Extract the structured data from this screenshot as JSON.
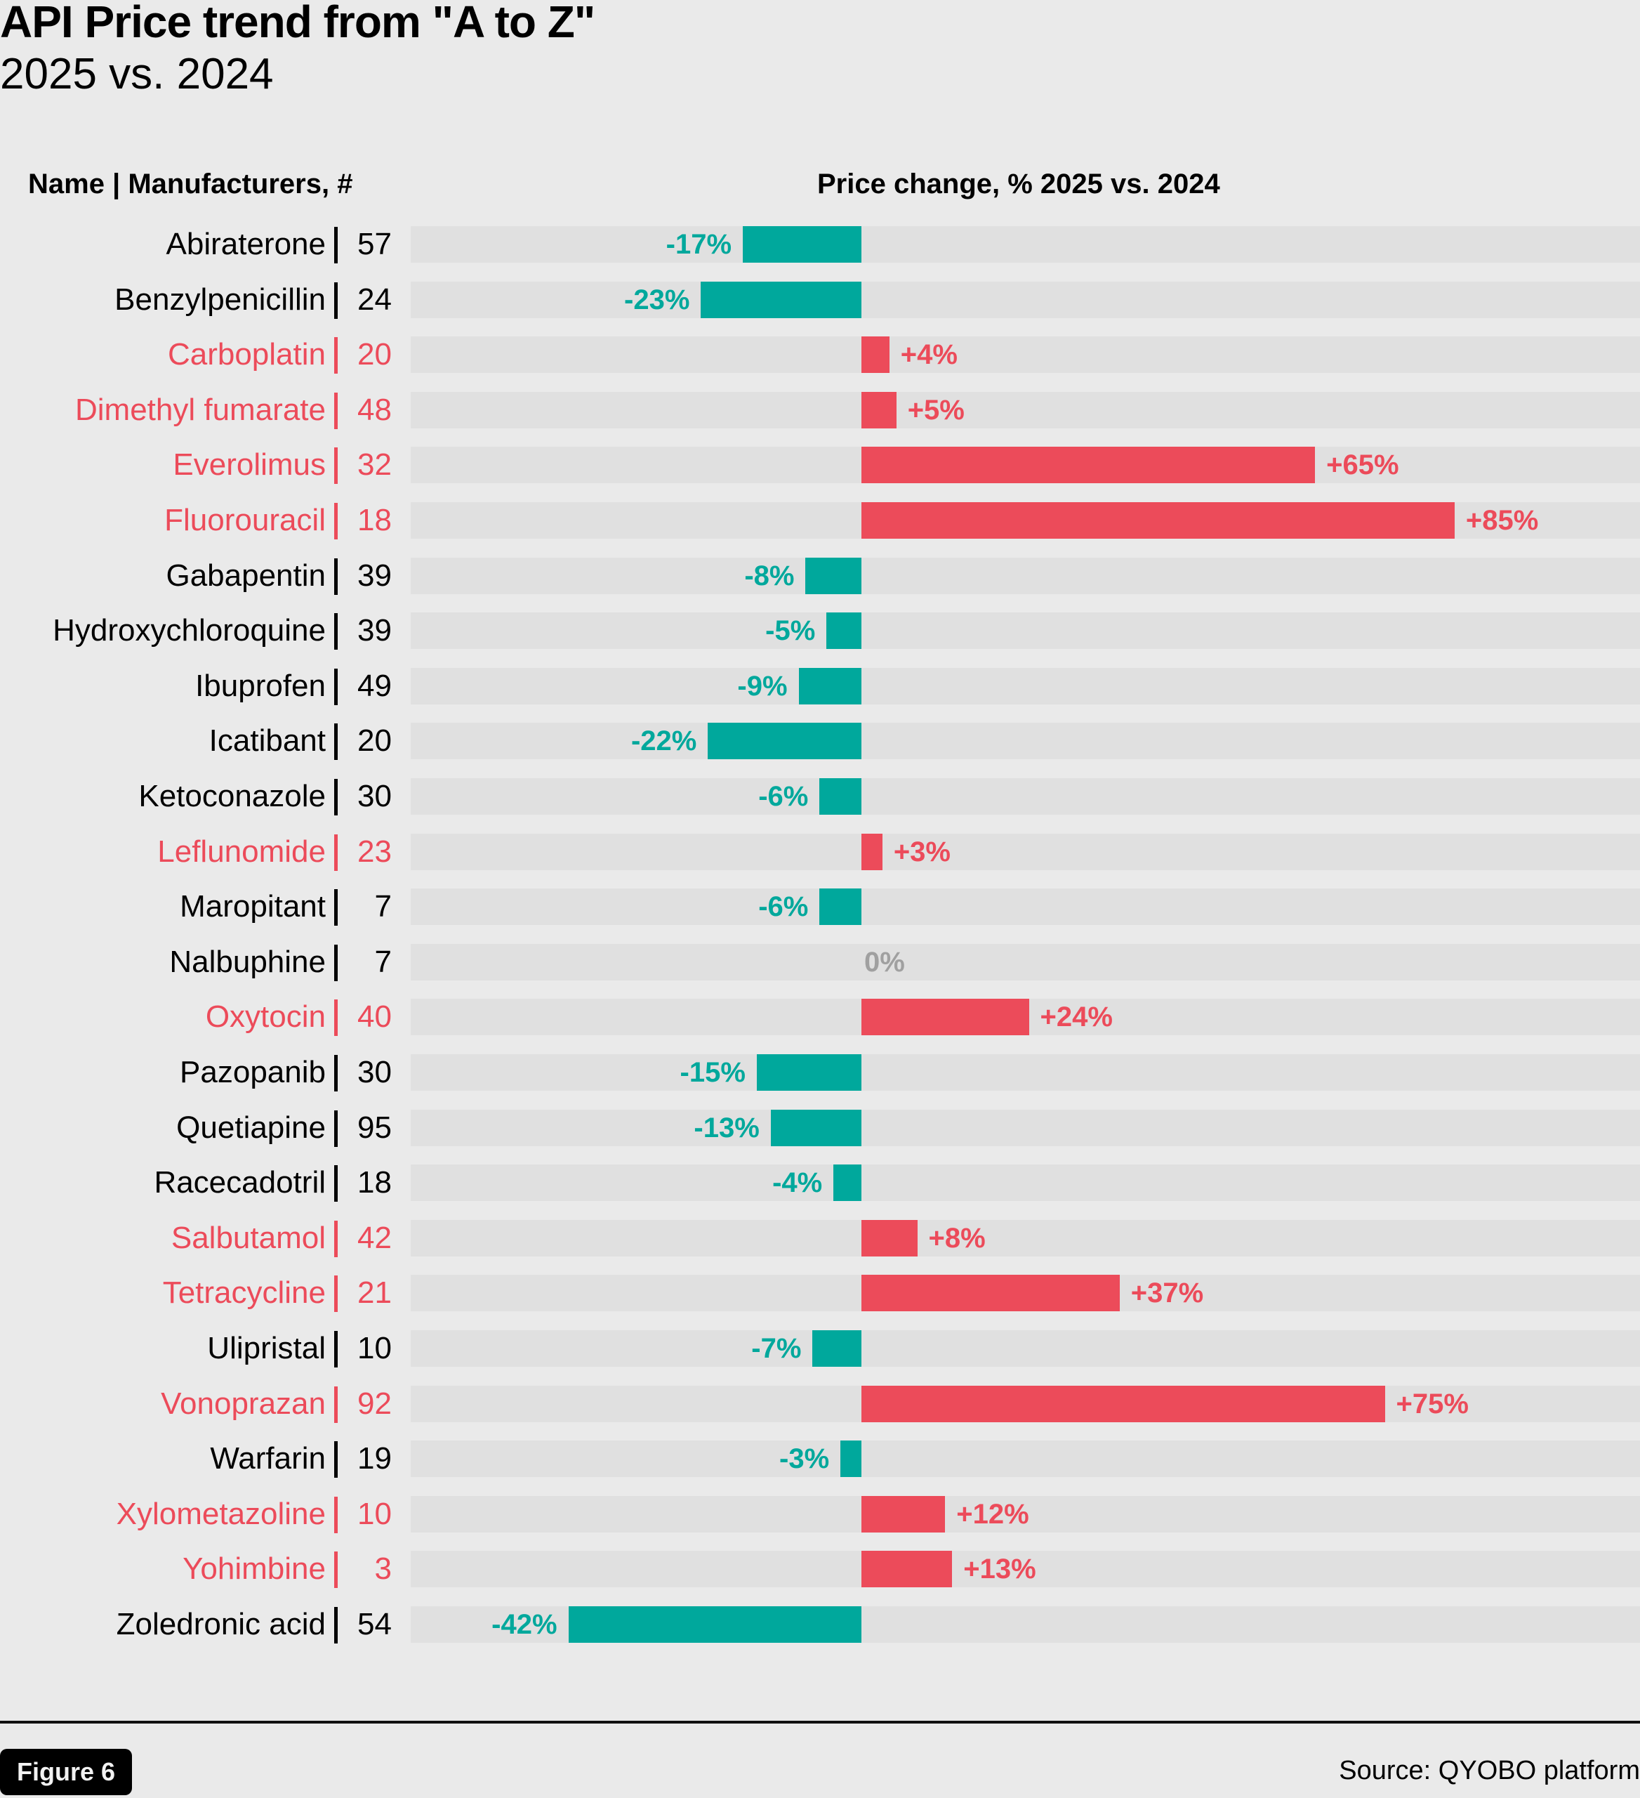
{
  "colors": {
    "background": "#eaeaea",
    "track": "#e0e0e0",
    "decrease": "#00a89c",
    "increase": "#ec4b5a",
    "neutral": "#a0a0a0",
    "text_default": "#000000"
  },
  "header": {
    "title": "API Price trend from \"A to Z\"",
    "subtitle": "2025 vs. 2024"
  },
  "columns": {
    "left": "Name | Manufacturers, #",
    "right": "Price change, % 2025 vs. 2024"
  },
  "footer": {
    "figure_label": "Figure 6",
    "source": "Source: QYOBO platform"
  },
  "chart_data": {
    "type": "bar",
    "orientation": "horizontal",
    "title": "API Price trend from \"A to Z\"",
    "subtitle": "2025 vs. 2024",
    "xlabel": "Price change, % 2025 vs. 2024",
    "ylabel": "Name | Manufacturers, #",
    "xlim": [
      -42,
      85
    ],
    "grid": false,
    "legend": "none",
    "categories": [
      "Abiraterone",
      "Benzylpenicillin",
      "Carboplatin",
      "Dimethyl fumarate",
      "Everolimus",
      "Fluorouracil",
      "Gabapentin",
      "Hydroxychloroquine",
      "Ibuprofen",
      "Icatibant",
      "Ketoconazole",
      "Leflunomide",
      "Maropitant",
      "Nalbuphine",
      "Oxytocin",
      "Pazopanib",
      "Quetiapine",
      "Racecadotril",
      "Salbutamol",
      "Tetracycline",
      "Ulipristal",
      "Vonoprazan",
      "Warfarin",
      "Xylometazoline",
      "Yohimbine",
      "Zoledronic acid"
    ],
    "manufacturers": [
      57,
      24,
      20,
      48,
      32,
      18,
      39,
      39,
      49,
      20,
      30,
      23,
      7,
      7,
      40,
      30,
      95,
      18,
      42,
      21,
      10,
      92,
      19,
      10,
      3,
      54
    ],
    "values": [
      -17,
      -23,
      4,
      5,
      65,
      85,
      -8,
      -5,
      -9,
      -22,
      -6,
      3,
      -6,
      0,
      24,
      -15,
      -13,
      -4,
      8,
      37,
      -7,
      75,
      -3,
      12,
      13,
      -42
    ],
    "labels": [
      "-17%",
      "-23%",
      "+4%",
      "+5%",
      "+65%",
      "+85%",
      "-8%",
      "-5%",
      "-9%",
      "-22%",
      "-6%",
      "+3%",
      "-6%",
      "0%",
      "+24%",
      "-15%",
      "-13%",
      "-4%",
      "+8%",
      "+37%",
      "-7%",
      "+75%",
      "-3%",
      "+12%",
      "+13%",
      "-42%"
    ]
  }
}
